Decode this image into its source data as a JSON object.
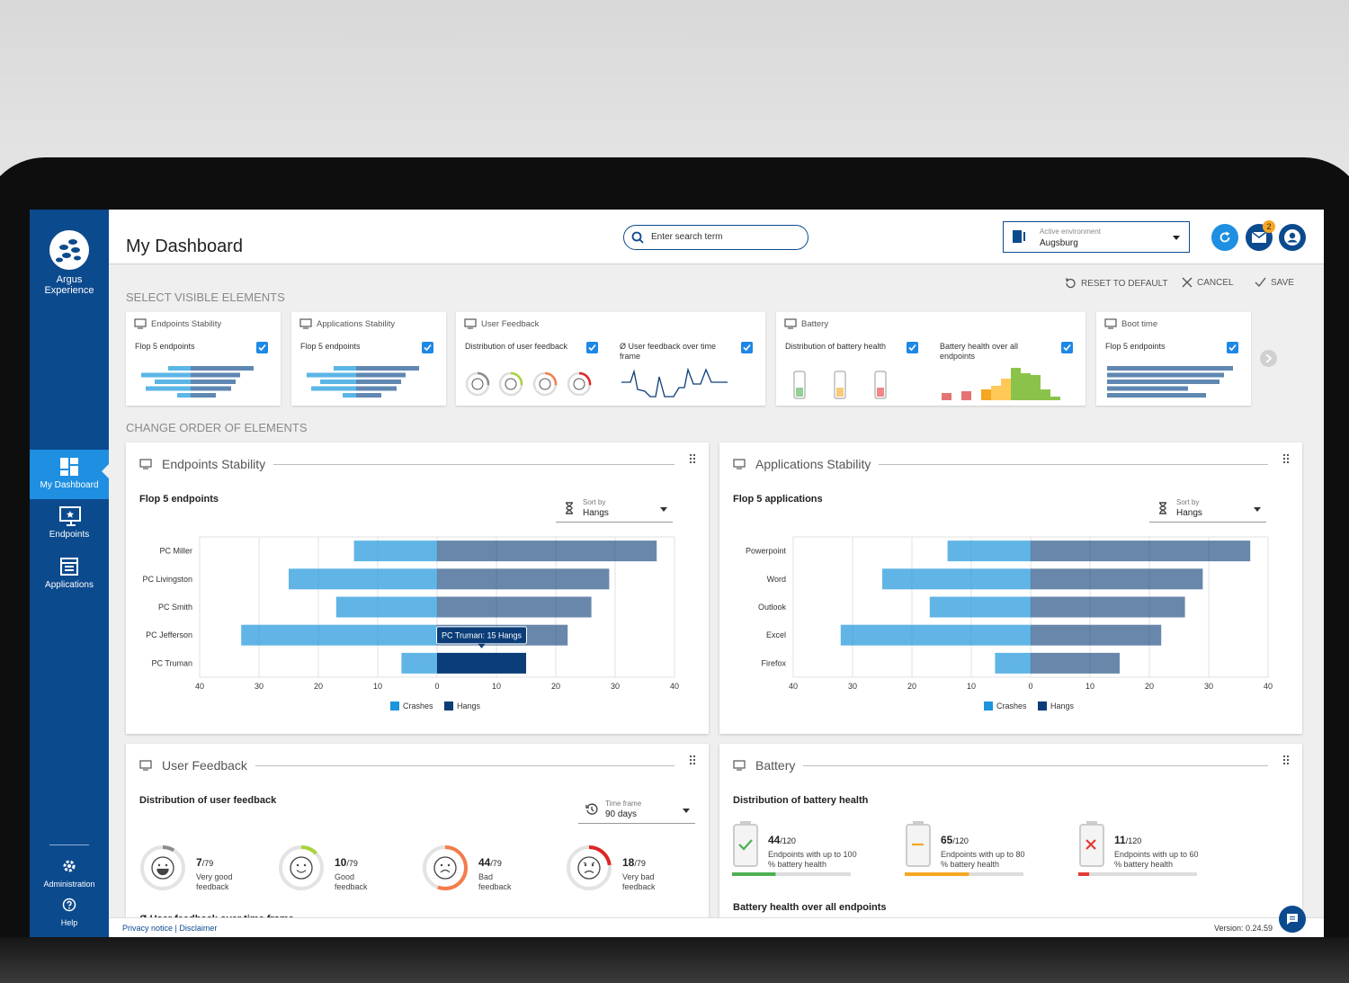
{
  "sidebar": {
    "brand": "Argus Experience",
    "nav": [
      "My Dashboard",
      "Endpoints",
      "Applications"
    ],
    "bottom": [
      "Administration",
      "Help"
    ]
  },
  "header": {
    "title": "My Dashboard",
    "search_placeholder": "Enter search term",
    "environment_label": "Active environment",
    "environment": "Augsburg",
    "notifications": 2
  },
  "toolbar": [
    "RESET TO DEFAULT",
    "CANCEL",
    "SAVE"
  ],
  "select_section": {
    "heading": "SELECT VISIBLE ELEMENTS",
    "cards": [
      {
        "title": "Endpoints Stability",
        "options": [
          "Flop 5 endpoints"
        ]
      },
      {
        "title": "Applications Stability",
        "options": [
          "Flop 5 endpoints"
        ]
      },
      {
        "title": "User Feedback",
        "options": [
          "Distribution of user feedback",
          "Ø User feedback over time frame"
        ]
      },
      {
        "title": "Battery",
        "options": [
          "Distribution of battery health",
          "Battery health over all endpoints"
        ]
      },
      {
        "title": "Boot time",
        "options": [
          "Flop 5 endpoints"
        ]
      }
    ]
  },
  "order_section": {
    "heading": "CHANGE ORDER OF ELEMENTS"
  },
  "chart_data": [
    {
      "type": "bar",
      "orientation": "horizontal",
      "title": "Endpoints Stability",
      "subtitle": "Flop 5 endpoints",
      "sort_label": "Sort by",
      "sort_value": "Hangs",
      "categories": [
        "PC Miller",
        "PC Livingston",
        "PC Smith",
        "PC Jefferson",
        "PC Truman"
      ],
      "series": [
        {
          "name": "Crashes",
          "color": "#1c95dc",
          "values": [
            14,
            25,
            17,
            33,
            6
          ]
        },
        {
          "name": "Hangs",
          "color": "#0b3d78",
          "values": [
            37,
            29,
            26,
            22,
            15
          ]
        }
      ],
      "xlim": [
        -40,
        40
      ],
      "xticks": [
        {
          "value": -40,
          "label": "40"
        },
        {
          "value": -30,
          "label": "30"
        },
        {
          "value": -20,
          "label": "20"
        },
        {
          "value": -10,
          "label": "10"
        },
        0,
        10,
        20,
        30,
        40
      ],
      "grid": true,
      "tooltip": "PC Truman: 15 Hangs"
    },
    {
      "type": "bar",
      "orientation": "horizontal",
      "title": "Applications Stability",
      "subtitle": "Flop 5 applications",
      "sort_label": "Sort by",
      "sort_value": "Hangs",
      "categories": [
        "Powerpoint",
        "Word",
        "Outlook",
        "Excel",
        "Firefox"
      ],
      "series": [
        {
          "name": "Crashes",
          "color": "#1c95dc",
          "values": [
            14,
            25,
            17,
            32,
            6
          ]
        },
        {
          "name": "Hangs",
          "color": "#0b3d78",
          "values": [
            37,
            29,
            26,
            22,
            15
          ]
        }
      ],
      "xlim": [
        -40,
        40
      ],
      "xticks": [
        {
          "value": -40,
          "label": "40"
        },
        {
          "value": -30,
          "label": "30"
        },
        {
          "value": -20,
          "label": "20"
        },
        {
          "value": -10,
          "label": "10"
        },
        0,
        10,
        20,
        30,
        40
      ],
      "grid": true
    }
  ],
  "user_feedback": {
    "title": "User Feedback",
    "subtitle": "Distribution of user feedback",
    "control_label": "Time frame",
    "control_value": "90 days",
    "items": [
      {
        "count": 7,
        "total": {
          "value": 79,
          "label": "/79"
        },
        "label": "Very good feedback",
        "color": "#8c8c8c"
      },
      {
        "count": 10,
        "total": {
          "value": 79,
          "label": "/79"
        },
        "label": "Good feedback",
        "color": "#a6d43a"
      },
      {
        "count": 44,
        "total": {
          "value": 79,
          "label": "/79"
        },
        "label": "Bad feedback",
        "color": "#f47c4a"
      },
      {
        "count": 18,
        "total": {
          "value": 79,
          "label": "/79"
        },
        "label": "Very bad feedback",
        "color": "#e02424"
      }
    ],
    "next_section": "Ø User feedback over time frame"
  },
  "battery": {
    "title": "Battery",
    "subtitle": "Distribution of battery health",
    "items": [
      {
        "count": 44,
        "total": {
          "value": 120,
          "label": "/120"
        },
        "label": "Endpoints with up to 100 % battery health",
        "color": "#4caf50"
      },
      {
        "count": 65,
        "total": {
          "value": 120,
          "label": "/120"
        },
        "label": "Endpoints with up to 80 % battery health",
        "color": "#f5a623"
      },
      {
        "count": 11,
        "total": {
          "value": 120,
          "label": "/120"
        },
        "label": "Endpoints with up to 60 % battery health",
        "color": "#e53935"
      }
    ],
    "next_section": "Battery health over all endpoints"
  },
  "footer": {
    "links": "Privacy notice | Disclaimer",
    "version": "Version: 0.24.59"
  }
}
